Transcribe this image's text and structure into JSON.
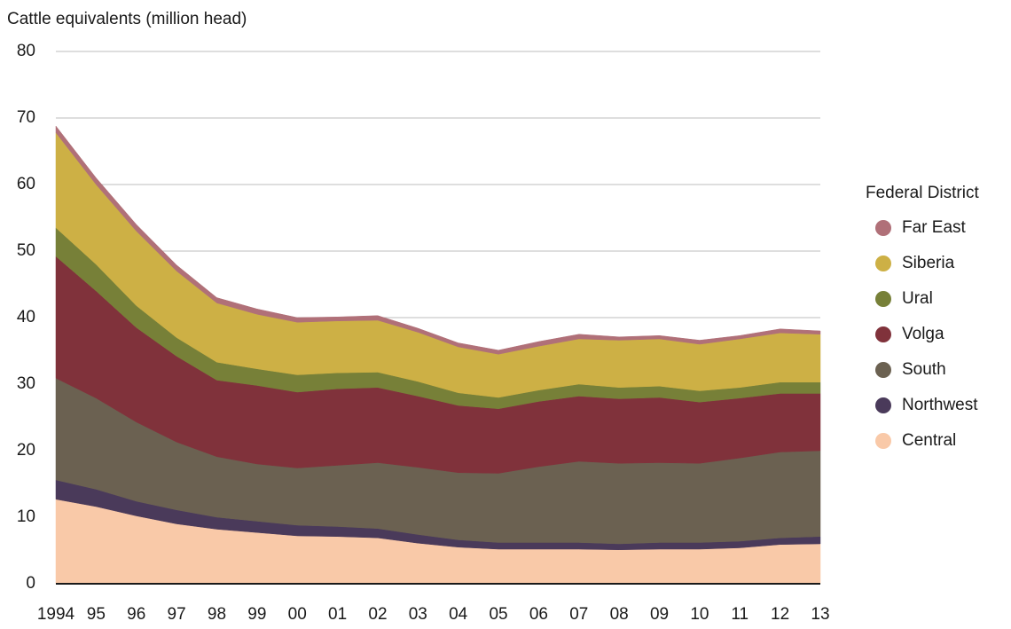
{
  "chart_data": {
    "type": "stacked_area",
    "y_axis_title": "Cattle equivalents  (million head)",
    "legend_title": "Federal District",
    "legend_position": "right",
    "categories": [
      "1994",
      "95",
      "96",
      "97",
      "98",
      "99",
      "00",
      "01",
      "02",
      "03",
      "04",
      "05",
      "06",
      "07",
      "08",
      "09",
      "10",
      "11",
      "12",
      "13"
    ],
    "ylim": [
      0,
      80
    ],
    "yticks": [
      0,
      10,
      20,
      30,
      40,
      50,
      60,
      70,
      80
    ],
    "grid": true,
    "series": [
      {
        "name": "Central",
        "color": "#f9c9a8",
        "values": [
          12.7,
          11.6,
          10.2,
          9.0,
          8.2,
          7.7,
          7.2,
          7.1,
          6.9,
          6.1,
          5.5,
          5.2,
          5.2,
          5.2,
          5.1,
          5.2,
          5.2,
          5.4,
          5.9,
          6.0
        ]
      },
      {
        "name": "Northwest",
        "color": "#4a3a5a",
        "values": [
          2.9,
          2.6,
          2.2,
          2.1,
          1.8,
          1.7,
          1.6,
          1.5,
          1.4,
          1.3,
          1.1,
          1.0,
          1.0,
          1.0,
          0.9,
          1.0,
          1.0,
          1.0,
          1.0,
          1.1
        ]
      },
      {
        "name": "South",
        "color": "#6b6151",
        "values": [
          15.3,
          13.7,
          11.9,
          10.2,
          9.1,
          8.6,
          8.6,
          9.2,
          9.9,
          10.1,
          10.1,
          10.4,
          11.4,
          12.2,
          12.1,
          12.0,
          11.9,
          12.5,
          12.9,
          12.9
        ]
      },
      {
        "name": "Volga",
        "color": "#80323b",
        "values": [
          18.3,
          16.1,
          14.2,
          12.9,
          11.5,
          11.8,
          11.4,
          11.5,
          11.3,
          10.7,
          10.1,
          9.7,
          9.8,
          9.8,
          9.7,
          9.8,
          9.2,
          9.0,
          8.8,
          8.6
        ]
      },
      {
        "name": "Ural",
        "color": "#778038",
        "values": [
          4.3,
          4.0,
          3.3,
          2.8,
          2.7,
          2.5,
          2.6,
          2.4,
          2.3,
          2.2,
          1.9,
          1.7,
          1.7,
          1.8,
          1.7,
          1.7,
          1.7,
          1.6,
          1.7,
          1.7
        ]
      },
      {
        "name": "Siberia",
        "color": "#cdb045",
        "values": [
          14.3,
          12.0,
          11.2,
          10.0,
          8.9,
          8.2,
          7.9,
          7.8,
          7.8,
          7.4,
          6.9,
          6.5,
          6.6,
          6.8,
          7.1,
          7.1,
          7.0,
          7.3,
          7.4,
          7.2
        ]
      },
      {
        "name": "Far East",
        "color": "#b07078",
        "values": [
          1.0,
          1.0,
          1.0,
          0.9,
          0.8,
          0.8,
          0.7,
          0.6,
          0.7,
          0.6,
          0.6,
          0.6,
          0.7,
          0.7,
          0.5,
          0.5,
          0.6,
          0.5,
          0.6,
          0.5
        ]
      }
    ]
  }
}
